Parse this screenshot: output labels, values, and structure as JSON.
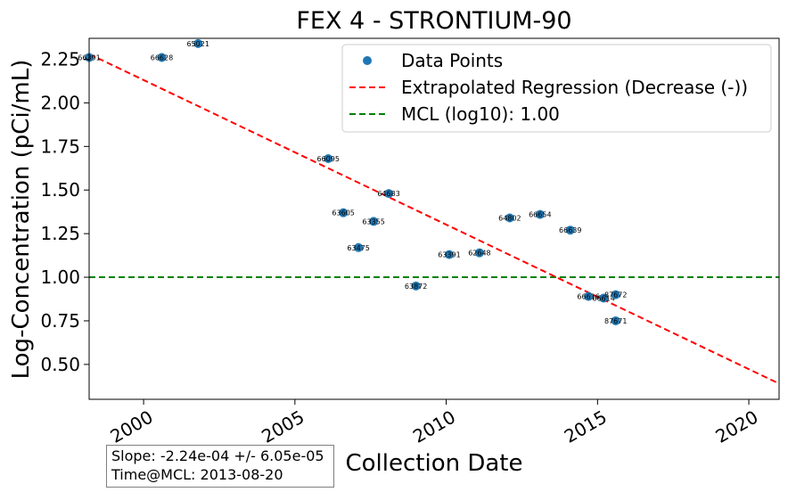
{
  "chart_data": {
    "type": "scatter",
    "title": "FEX  4 - STRONTIUM-90",
    "xlabel": "Collection Date",
    "ylabel": "Log-Concentration (pCi/mL)",
    "xlim": [
      1998.2,
      2021.0
    ],
    "ylim": [
      0.3,
      2.37
    ],
    "x_ticks": [
      2000,
      2005,
      2010,
      2015,
      2020
    ],
    "y_ticks": [
      "0.50",
      "0.75",
      "1.00",
      "1.25",
      "1.50",
      "1.75",
      "2.00",
      "2.25"
    ],
    "grid": false,
    "legend_position": "top-right",
    "colors": {
      "points": "#1f77b4",
      "regression": "#ff0000",
      "mcl": "#008000"
    },
    "series": [
      {
        "name": "Data Points",
        "points": [
          {
            "x": 1998.2,
            "y": 2.26,
            "label": "66391"
          },
          {
            "x": 2000.6,
            "y": 2.26,
            "label": "66628"
          },
          {
            "x": 2001.8,
            "y": 2.34,
            "label": "65021"
          },
          {
            "x": 2006.1,
            "y": 1.68,
            "label": "66095"
          },
          {
            "x": 2008.1,
            "y": 1.48,
            "label": "64683"
          },
          {
            "x": 2006.6,
            "y": 1.37,
            "label": "63605"
          },
          {
            "x": 2007.6,
            "y": 1.32,
            "label": "63355"
          },
          {
            "x": 2007.1,
            "y": 1.17,
            "label": "63475"
          },
          {
            "x": 2010.1,
            "y": 1.13,
            "label": "63391"
          },
          {
            "x": 2011.1,
            "y": 1.14,
            "label": "62648"
          },
          {
            "x": 2009.0,
            "y": 0.95,
            "label": "63872"
          },
          {
            "x": 2012.1,
            "y": 1.34,
            "label": "64802"
          },
          {
            "x": 2013.1,
            "y": 1.36,
            "label": "66654"
          },
          {
            "x": 2014.1,
            "y": 1.27,
            "label": "66639"
          },
          {
            "x": 2014.7,
            "y": 0.89,
            "label": "66616"
          },
          {
            "x": 2015.2,
            "y": 0.88,
            "label": "66614"
          },
          {
            "x": 2015.6,
            "y": 0.9,
            "label": "87672"
          },
          {
            "x": 2015.6,
            "y": 0.75,
            "label": "87671"
          }
        ]
      },
      {
        "name": "Extrapolated Regression (Decrease (-))",
        "line": [
          {
            "x": 1998.2,
            "y": 2.28
          },
          {
            "x": 2021.0,
            "y": 0.39
          }
        ]
      },
      {
        "name": "MCL (log10): 1.00",
        "hline": 1.0
      }
    ],
    "annotation": {
      "slope": "Slope: -2.24e-04 +/- 6.05e-05",
      "time_at_mcl": "Time@MCL: 2013-08-20"
    }
  }
}
